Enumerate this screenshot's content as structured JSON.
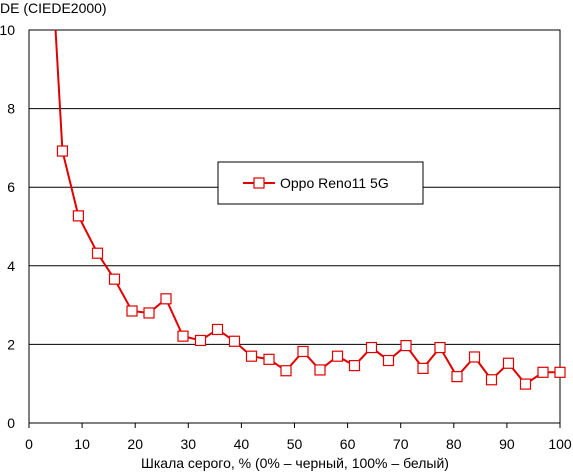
{
  "chart_data": {
    "type": "line",
    "ylabel": "DE (CIEDE2000)",
    "xlabel": "Шкала серого, % (0% – черный, 100% – белый)",
    "xlim": [
      0,
      100
    ],
    "ylim": [
      0,
      10
    ],
    "xticks": [
      0,
      10,
      20,
      30,
      40,
      50,
      60,
      70,
      80,
      90,
      100
    ],
    "yticks": [
      0,
      2,
      4,
      6,
      8,
      10
    ],
    "grid": "horizontal",
    "legend_position": "center",
    "series_color": "#e00000",
    "series": [
      {
        "name": "Oppo Reno11 5G",
        "line_start": {
          "x": 5.0,
          "y": 10.1
        },
        "points": [
          {
            "x": 6.3,
            "y": 6.92
          },
          {
            "x": 9.3,
            "y": 5.27
          },
          {
            "x": 12.9,
            "y": 4.32
          },
          {
            "x": 16.1,
            "y": 3.66
          },
          {
            "x": 19.4,
            "y": 2.85
          },
          {
            "x": 22.6,
            "y": 2.8
          },
          {
            "x": 25.8,
            "y": 3.16
          },
          {
            "x": 29.0,
            "y": 2.21
          },
          {
            "x": 32.3,
            "y": 2.1
          },
          {
            "x": 35.5,
            "y": 2.38
          },
          {
            "x": 38.7,
            "y": 2.08
          },
          {
            "x": 41.9,
            "y": 1.7
          },
          {
            "x": 45.2,
            "y": 1.62
          },
          {
            "x": 48.4,
            "y": 1.33
          },
          {
            "x": 51.6,
            "y": 1.82
          },
          {
            "x": 54.8,
            "y": 1.35
          },
          {
            "x": 58.1,
            "y": 1.7
          },
          {
            "x": 61.3,
            "y": 1.46
          },
          {
            "x": 64.5,
            "y": 1.92
          },
          {
            "x": 67.7,
            "y": 1.59
          },
          {
            "x": 71.0,
            "y": 1.97
          },
          {
            "x": 74.2,
            "y": 1.39
          },
          {
            "x": 77.4,
            "y": 1.92
          },
          {
            "x": 80.6,
            "y": 1.18
          },
          {
            "x": 83.9,
            "y": 1.68
          },
          {
            "x": 87.1,
            "y": 1.1
          },
          {
            "x": 90.3,
            "y": 1.52
          },
          {
            "x": 93.5,
            "y": 0.99
          },
          {
            "x": 96.8,
            "y": 1.29
          },
          {
            "x": 100.0,
            "y": 1.29
          }
        ]
      }
    ]
  }
}
